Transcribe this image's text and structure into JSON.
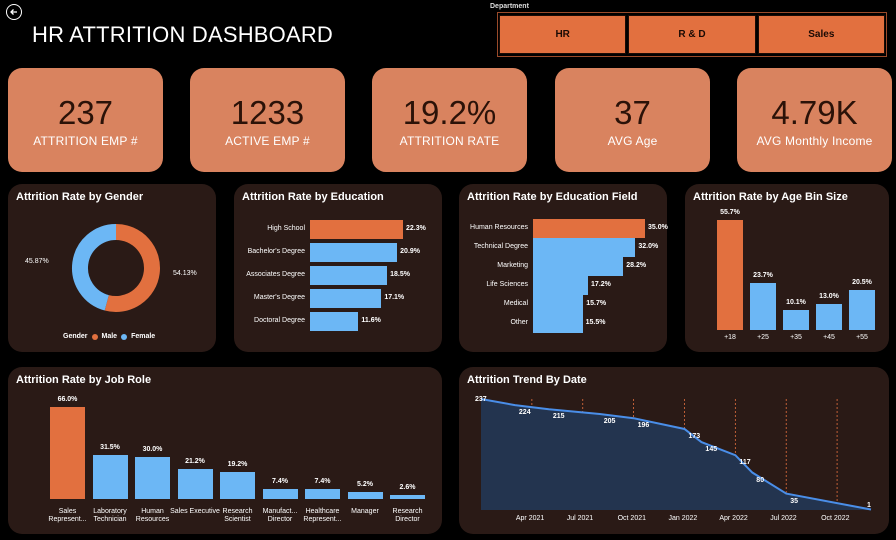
{
  "header": {
    "title": "HR ATTRITION DASHBOARD"
  },
  "department": {
    "label": "Department",
    "options": [
      "HR",
      "R & D",
      "Sales"
    ]
  },
  "kpis": [
    {
      "value": "237",
      "label": "ATTRITION EMP #"
    },
    {
      "value": "1233",
      "label": "ACTIVE EMP #"
    },
    {
      "value": "19.2%",
      "label": "ATTRITION RATE"
    },
    {
      "value": "37",
      "label": "AVG Age"
    },
    {
      "value": "4.79K",
      "label": "AVG Monthly Income"
    }
  ],
  "colors": {
    "accent": "#e2703f",
    "blue": "#6cb7f5",
    "card": "#2a1a16",
    "kpi": "#d9835f"
  },
  "chart_data": [
    {
      "type": "pie",
      "title": "Attrition Rate by Gender",
      "legend_title": "Gender",
      "categories": [
        "Male",
        "Female"
      ],
      "values": [
        54.13,
        45.87
      ],
      "labels": [
        "54.13%",
        "45.87%"
      ]
    },
    {
      "type": "bar",
      "title": "Attrition Rate by Education",
      "categories": [
        "High School",
        "Bachelor's Degree",
        "Associates Degree",
        "Master's Degree",
        "Doctoral Degree"
      ],
      "values": [
        22.3,
        20.9,
        18.5,
        17.1,
        11.6
      ],
      "labels": [
        "22.3%",
        "20.9%",
        "18.5%",
        "17.1%",
        "11.6%"
      ]
    },
    {
      "type": "bar",
      "title": "Attrition Rate by Education Field",
      "categories": [
        "Human Resources",
        "Technical Degree",
        "Marketing",
        "Life Sciences",
        "Medical",
        "Other"
      ],
      "values": [
        35.0,
        32.0,
        28.2,
        17.2,
        15.7,
        15.5
      ],
      "labels": [
        "35.0%",
        "32.0%",
        "28.2%",
        "17.2%",
        "15.7%",
        "15.5%"
      ]
    },
    {
      "type": "bar",
      "title": "Attrition Rate by Age Bin Size",
      "categories": [
        "+18",
        "+25",
        "+35",
        "+45",
        "+55"
      ],
      "values": [
        55.7,
        23.7,
        10.1,
        13.0,
        20.5
      ],
      "labels": [
        "55.7%",
        "23.7%",
        "10.1%",
        "13.0%",
        "20.5%"
      ]
    },
    {
      "type": "bar",
      "title": "Attrition Rate by Job Role",
      "categories": [
        "Sales Represent...",
        "Laboratory Technician",
        "Human Resources",
        "Sales Executive",
        "Research Scientist",
        "Manufact... Director",
        "Healthcare Represent...",
        "Manager",
        "Research Director"
      ],
      "values": [
        66.0,
        31.5,
        30.0,
        21.2,
        19.2,
        7.4,
        7.4,
        5.2,
        2.6
      ],
      "labels": [
        "66.0%",
        "31.5%",
        "30.0%",
        "21.2%",
        "19.2%",
        "7.4%",
        "7.4%",
        "5.2%",
        "2.6%"
      ]
    },
    {
      "type": "area",
      "title": "Attrition Trend By Date",
      "x_ticks": [
        "Apr 2021",
        "Jul 2021",
        "Oct 2021",
        "Jan 2022",
        "Apr 2022",
        "Jul 2022",
        "Oct 2022"
      ],
      "points": [
        {
          "x": "Jan 2021",
          "y": 237
        },
        {
          "x": "Mar 2021",
          "y": 224
        },
        {
          "x": "May 2021",
          "y": 215
        },
        {
          "x": "Aug 2021",
          "y": 205
        },
        {
          "x": "Oct 2021",
          "y": 196
        },
        {
          "x": "Jan 2022",
          "y": 173
        },
        {
          "x": "Feb 2022",
          "y": 145
        },
        {
          "x": "Apr 2022",
          "y": 117
        },
        {
          "x": "May 2022",
          "y": 80
        },
        {
          "x": "Jul 2022",
          "y": 35
        },
        {
          "x": "Dec 2022",
          "y": 1
        }
      ],
      "labels": [
        "237",
        "224",
        "215",
        "205",
        "196",
        "173",
        "145",
        "117",
        "80",
        "35",
        "1"
      ]
    }
  ]
}
